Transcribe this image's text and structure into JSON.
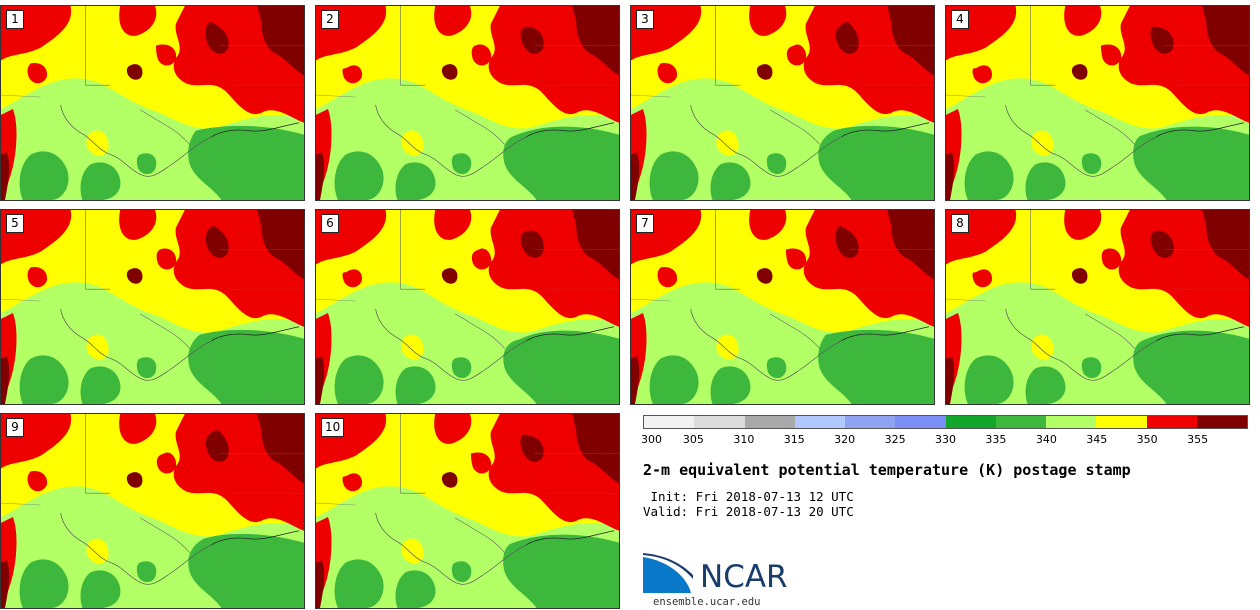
{
  "stamps": [
    {
      "label": "1"
    },
    {
      "label": "2"
    },
    {
      "label": "3"
    },
    {
      "label": "4"
    },
    {
      "label": "5"
    },
    {
      "label": "6"
    },
    {
      "label": "7"
    },
    {
      "label": "8"
    },
    {
      "label": "9"
    },
    {
      "label": "10"
    }
  ],
  "colorbar": {
    "ticks": [
      "300",
      "305",
      "310",
      "315",
      "320",
      "325",
      "330",
      "335",
      "340",
      "345",
      "350",
      "355"
    ],
    "colors": [
      "#f2f2f2",
      "#dcdcdc",
      "#a9a9a9",
      "#b3c8ff",
      "#8fa3f0",
      "#7a8ef5",
      "#12a62a",
      "#3db83d",
      "#b3ff66",
      "#ffff00",
      "#ee0000",
      "#800000"
    ]
  },
  "title": "2-m equivalent potential temperature (K) postage stamp",
  "init_line": " Init: Fri 2018-07-13 12 UTC",
  "valid_line": "Valid: Fri 2018-07-13 20 UTC",
  "logo": {
    "name": "NCAR",
    "url": "ensemble.ucar.edu"
  },
  "colors": {
    "light_green": "#b3ff66",
    "green": "#3db83d",
    "dark_green": "#12a62a",
    "yellow": "#ffff00",
    "red": "#ee0000",
    "dark_red": "#800000"
  }
}
